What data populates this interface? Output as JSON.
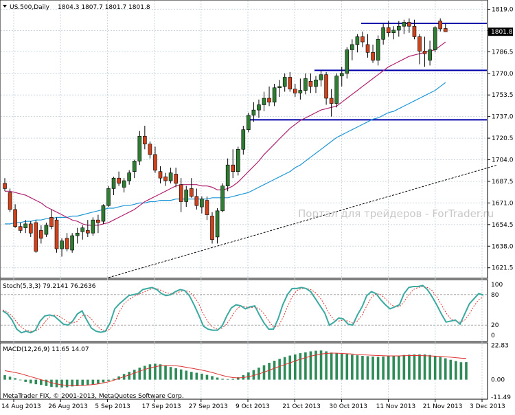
{
  "header": {
    "symbol_label": "US.500,Daily",
    "ohlc": "1804.3 1807.7 1801.7 1801.8"
  },
  "watermark": "Портал для трейдеров - ForTrader.ru",
  "copyright": "MetaTrader FIX, © 2001-2013, MetaQuotes Software Corp.",
  "colors": {
    "bull": "#2e7d32",
    "bear": "#d0421b",
    "ma_short": "#b0206e",
    "ma_long": "#1e96d6",
    "stoch_main": "#3aa9a0",
    "stoch_signal": "#e03030",
    "macd_hist": "#2e8b57",
    "macd_signal": "#e03030",
    "level_line": "#0000aa",
    "grid": "#c9d6e0"
  },
  "chart_data": [
    {
      "type": "candlestick",
      "title": "US.500,Daily",
      "price_axis_ticks": [
        "1819.0",
        "1802.7",
        "1786.5",
        "1770.0",
        "1753.5",
        "1737.0",
        "1720.5",
        "1704.0",
        "1687.5",
        "1671.0",
        "1654.5",
        "1638.0",
        "1621.5"
      ],
      "current_price_label": "1801.8",
      "date_labels": [
        "14 Aug 2013",
        "26 Aug 2013",
        "5 Sep 2013",
        "17 Sep 2013",
        "27 Sep 2013",
        "9 Oct 2013",
        "21 Oct 2013",
        "30 Oct 2013",
        "11 Nov 2013",
        "21 Nov 2013",
        "3 Dec 2013"
      ],
      "ylim": [
        1614,
        1825
      ],
      "candles": [
        [
          1686,
          1690,
          1680,
          1682
        ],
        [
          1679,
          1682,
          1664,
          1666
        ],
        [
          1666,
          1670,
          1652,
          1653
        ],
        [
          1653,
          1656,
          1648,
          1650
        ],
        [
          1652,
          1658,
          1648,
          1655
        ],
        [
          1655,
          1657,
          1645,
          1648
        ],
        [
          1656,
          1658,
          1633,
          1634
        ],
        [
          1650,
          1654,
          1640,
          1644
        ],
        [
          1647,
          1656,
          1645,
          1654
        ],
        [
          1660,
          1666,
          1651,
          1653
        ],
        [
          1658,
          1660,
          1633,
          1636
        ],
        [
          1636,
          1644,
          1630,
          1642
        ],
        [
          1644,
          1648,
          1634,
          1636
        ],
        [
          1635,
          1648,
          1633,
          1646
        ],
        [
          1646,
          1652,
          1640,
          1648
        ],
        [
          1649,
          1654,
          1643,
          1652
        ],
        [
          1650,
          1658,
          1645,
          1648
        ],
        [
          1648,
          1660,
          1646,
          1658
        ],
        [
          1658,
          1662,
          1648,
          1656
        ],
        [
          1657,
          1670,
          1655,
          1669
        ],
        [
          1669,
          1684,
          1668,
          1682
        ],
        [
          1682,
          1691,
          1677,
          1690
        ],
        [
          1690,
          1695,
          1684,
          1686
        ],
        [
          1683,
          1690,
          1679,
          1688
        ],
        [
          1688,
          1696,
          1685,
          1694
        ],
        [
          1695,
          1704,
          1690,
          1703
        ],
        [
          1703,
          1726,
          1700,
          1722
        ],
        [
          1722,
          1730,
          1712,
          1716
        ],
        [
          1716,
          1718,
          1705,
          1708
        ],
        [
          1708,
          1714,
          1694,
          1696
        ],
        [
          1695,
          1699,
          1686,
          1690
        ],
        [
          1691,
          1694,
          1684,
          1688
        ],
        [
          1688,
          1698,
          1686,
          1694
        ],
        [
          1693,
          1698,
          1683,
          1686
        ],
        [
          1685,
          1690,
          1664,
          1672
        ],
        [
          1672,
          1684,
          1668,
          1681
        ],
        [
          1682,
          1690,
          1675,
          1676
        ],
        [
          1676,
          1682,
          1666,
          1669
        ],
        [
          1668,
          1676,
          1663,
          1674
        ],
        [
          1673,
          1676,
          1658,
          1662
        ],
        [
          1661,
          1664,
          1640,
          1643
        ],
        [
          1645,
          1667,
          1640,
          1665
        ],
        [
          1665,
          1686,
          1664,
          1684
        ],
        [
          1684,
          1705,
          1680,
          1700
        ],
        [
          1700,
          1712,
          1690,
          1695
        ],
        [
          1695,
          1714,
          1692,
          1712
        ],
        [
          1712,
          1730,
          1708,
          1727
        ],
        [
          1727,
          1740,
          1725,
          1738
        ],
        [
          1738,
          1748,
          1733,
          1742
        ],
        [
          1742,
          1750,
          1736,
          1746
        ],
        [
          1746,
          1756,
          1741,
          1751
        ],
        [
          1751,
          1760,
          1745,
          1748
        ],
        [
          1748,
          1762,
          1745,
          1759
        ],
        [
          1759,
          1765,
          1752,
          1760
        ],
        [
          1760,
          1770,
          1756,
          1767
        ],
        [
          1767,
          1771,
          1756,
          1758
        ],
        [
          1758,
          1762,
          1752,
          1755
        ],
        [
          1755,
          1766,
          1750,
          1757
        ],
        [
          1757,
          1770,
          1754,
          1766
        ],
        [
          1764,
          1770,
          1755,
          1760
        ],
        [
          1760,
          1768,
          1755,
          1765
        ],
        [
          1765,
          1772,
          1760,
          1769
        ],
        [
          1769,
          1771,
          1746,
          1751
        ],
        [
          1751,
          1758,
          1737,
          1747
        ],
        [
          1747,
          1770,
          1744,
          1768
        ],
        [
          1768,
          1775,
          1760,
          1770
        ],
        [
          1770,
          1790,
          1766,
          1788
        ],
        [
          1788,
          1796,
          1780,
          1792
        ],
        [
          1792,
          1800,
          1786,
          1798
        ],
        [
          1798,
          1802,
          1790,
          1794
        ],
        [
          1792,
          1800,
          1782,
          1786
        ],
        [
          1786,
          1792,
          1778,
          1780
        ],
        [
          1780,
          1799,
          1776,
          1796
        ],
        [
          1796,
          1808,
          1792,
          1805
        ],
        [
          1805,
          1810,
          1798,
          1801
        ],
        [
          1801,
          1806,
          1796,
          1803
        ],
        [
          1803,
          1810,
          1798,
          1806
        ],
        [
          1806,
          1811,
          1800,
          1809
        ],
        [
          1809,
          1812,
          1801,
          1806
        ],
        [
          1806,
          1811,
          1796,
          1798
        ],
        [
          1798,
          1800,
          1777,
          1787
        ],
        [
          1787,
          1798,
          1775,
          1785
        ],
        [
          1780,
          1795,
          1776,
          1788
        ],
        [
          1788,
          1806,
          1786,
          1805
        ],
        [
          1810,
          1812,
          1802,
          1804
        ],
        [
          1804.3,
          1807.7,
          1801.7,
          1801.8
        ]
      ],
      "ma_short": [
        1680,
        1680,
        1679,
        1678,
        1677,
        1675,
        1673,
        1671,
        1668,
        1666,
        1664,
        1662,
        1660,
        1658,
        1657,
        1655,
        1654,
        1654,
        1654,
        1655,
        1656,
        1658,
        1660,
        1662,
        1664,
        1666,
        1669,
        1672,
        1674,
        1676,
        1678,
        1680,
        1682,
        1684,
        1685,
        1685,
        1685,
        1685,
        1684,
        1684,
        1683,
        1681,
        1681,
        1682,
        1684,
        1687,
        1691,
        1695,
        1699,
        1703,
        1708,
        1712,
        1716,
        1720,
        1724,
        1728,
        1731,
        1734,
        1736,
        1738,
        1740,
        1742,
        1743,
        1744,
        1745,
        1748,
        1751,
        1754,
        1757,
        1760,
        1763,
        1766,
        1769,
        1772,
        1775,
        1777,
        1779,
        1781,
        1783,
        1784,
        1785,
        1786,
        1787,
        1788,
        1791,
        1794
      ],
      "ma_long": [
        1655,
        1655,
        1656,
        1656,
        1657,
        1657,
        1658,
        1658,
        1659,
        1659,
        1660,
        1660,
        1660,
        1661,
        1661,
        1662,
        1663,
        1664,
        1665,
        1666,
        1667,
        1667,
        1668,
        1669,
        1669,
        1670,
        1671,
        1671,
        1672,
        1672,
        1673,
        1673,
        1673,
        1674,
        1674,
        1674,
        1674,
        1674,
        1674,
        1674,
        1675,
        1675,
        1675,
        1675,
        1676,
        1677,
        1678,
        1679,
        1681,
        1683,
        1685,
        1687,
        1689,
        1691,
        1693,
        1695,
        1698,
        1700,
        1703,
        1706,
        1709,
        1712,
        1715,
        1718,
        1721,
        1723,
        1725,
        1727,
        1729,
        1731,
        1733,
        1735,
        1736,
        1738,
        1740,
        1741,
        1743,
        1745,
        1747,
        1749,
        1751,
        1753,
        1755,
        1757,
        1760,
        1763
      ],
      "levels": [
        {
          "value": 1808.2,
          "from": 69
        },
        {
          "value": 1772.3,
          "from": 60
        },
        {
          "value": 1734.5,
          "from": 47
        }
      ],
      "trendline": {
        "from_index": 20,
        "from_value": 1614,
        "to_index": 95,
        "to_value": 1700
      }
    },
    {
      "type": "line",
      "title": "Stoch(5,3,3) 79.2141 76.2636",
      "axis_ticks": [
        "100",
        "80",
        "20",
        "0"
      ],
      "ylim": [
        0,
        100
      ],
      "series": [
        {
          "name": "Stoch main",
          "values": [
            48,
            42,
            30,
            12,
            5,
            8,
            5,
            10,
            28,
            38,
            40,
            38,
            30,
            22,
            20,
            28,
            42,
            48,
            30,
            14,
            8,
            6,
            8,
            24,
            52,
            62,
            70,
            78,
            80,
            82,
            90,
            92,
            94,
            90,
            82,
            78,
            80,
            86,
            90,
            88,
            78,
            60,
            40,
            18,
            12,
            10,
            10,
            18,
            38,
            54,
            60,
            58,
            52,
            56,
            58,
            40,
            24,
            12,
            12,
            32,
            60,
            80,
            92,
            92,
            94,
            92,
            86,
            72,
            58,
            44,
            20,
            26,
            34,
            32,
            22,
            20,
            40,
            56,
            78,
            86,
            82,
            70,
            60,
            52,
            56,
            60,
            82,
            94,
            96,
            96,
            98,
            90,
            76,
            60,
            42,
            26,
            28,
            30,
            22,
            42,
            62,
            72,
            82,
            79
          ]
        },
        {
          "name": "Stoch signal",
          "values": [
            50,
            46,
            38,
            26,
            16,
            10,
            8,
            8,
            14,
            26,
            36,
            40,
            38,
            32,
            26,
            24,
            28,
            38,
            40,
            32,
            20,
            12,
            8,
            12,
            26,
            46,
            62,
            70,
            76,
            80,
            84,
            88,
            92,
            92,
            88,
            84,
            82,
            82,
            86,
            88,
            86,
            76,
            62,
            42,
            26,
            16,
            12,
            14,
            22,
            36,
            50,
            58,
            56,
            54,
            56,
            52,
            42,
            28,
            16,
            18,
            34,
            56,
            76,
            88,
            92,
            92,
            90,
            84,
            74,
            60,
            42,
            30,
            28,
            30,
            28,
            24,
            28,
            40,
            58,
            74,
            82,
            80,
            72,
            62,
            56,
            56,
            66,
            80,
            90,
            94,
            96,
            94,
            88,
            76,
            60,
            44,
            32,
            28,
            26,
            30,
            42,
            58,
            70,
            76
          ]
        }
      ]
    },
    {
      "type": "bar",
      "title": "MACD(12,26,9) 11.65 14.07",
      "axis_ticks": [
        "22.83",
        "0.00",
        "-11.49"
      ],
      "ylim": [
        -12.5,
        24
      ],
      "series": [
        {
          "name": "MACD",
          "values": [
            3.0,
            2.0,
            1.0,
            0.0,
            -1.5,
            -2.5,
            -3.0,
            -3.5,
            -4.2,
            -4.8,
            -5.0,
            -5.2,
            -5.0,
            -4.5,
            -4.2,
            -4.0,
            -3.6,
            -3.2,
            -2.6,
            -1.8,
            -0.8,
            0.6,
            2.2,
            3.8,
            5.2,
            6.6,
            8.0,
            9.2,
            10.2,
            10.6,
            10.2,
            9.4,
            8.4,
            7.6,
            6.8,
            6.0,
            5.2,
            4.6,
            4.0,
            3.2,
            2.4,
            1.4,
            0.6,
            0.4,
            0.6,
            1.6,
            3.0,
            4.8,
            6.4,
            8.0,
            9.6,
            11.2,
            12.6,
            13.8,
            15.0,
            16.0,
            16.8,
            17.6,
            18.2,
            18.8,
            19.2,
            19.4,
            18.8,
            18.0,
            17.4,
            17.2,
            17.0,
            16.6,
            16.2,
            15.8,
            15.6,
            15.4,
            15.2,
            15.4,
            15.6,
            15.8,
            16.0,
            16.4,
            16.6,
            16.8,
            16.8,
            16.8,
            16.4,
            15.8,
            15.0,
            14.2,
            13.2,
            12.4,
            11.6,
            11.65
          ]
        },
        {
          "name": "Signal",
          "values": [
            6.0,
            5.4,
            4.8,
            4.0,
            3.0,
            2.0,
            1.0,
            0.0,
            -1.0,
            -2.0,
            -2.8,
            -3.4,
            -3.8,
            -4.0,
            -4.0,
            -3.8,
            -3.6,
            -3.2,
            -2.8,
            -2.2,
            -1.4,
            -0.4,
            0.8,
            2.0,
            3.2,
            4.4,
            5.6,
            6.8,
            7.8,
            8.6,
            9.2,
            9.4,
            9.4,
            9.2,
            8.8,
            8.2,
            7.6,
            7.0,
            6.4,
            5.6,
            4.8,
            3.8,
            2.8,
            2.0,
            1.4,
            1.2,
            1.4,
            2.0,
            2.8,
            3.8,
            5.0,
            6.2,
            7.6,
            8.8,
            10.0,
            11.2,
            12.4,
            13.6,
            14.6,
            15.6,
            16.4,
            17.0,
            17.4,
            17.6,
            17.6,
            17.4,
            17.2,
            17.0,
            16.8,
            16.6,
            16.4,
            16.2,
            16.0,
            15.9,
            15.8,
            15.8,
            15.8,
            15.9,
            16.0,
            16.0,
            16.0,
            15.9,
            15.8,
            15.6,
            15.4,
            15.2,
            14.9,
            14.6,
            14.3,
            14.07
          ]
        }
      ]
    }
  ]
}
